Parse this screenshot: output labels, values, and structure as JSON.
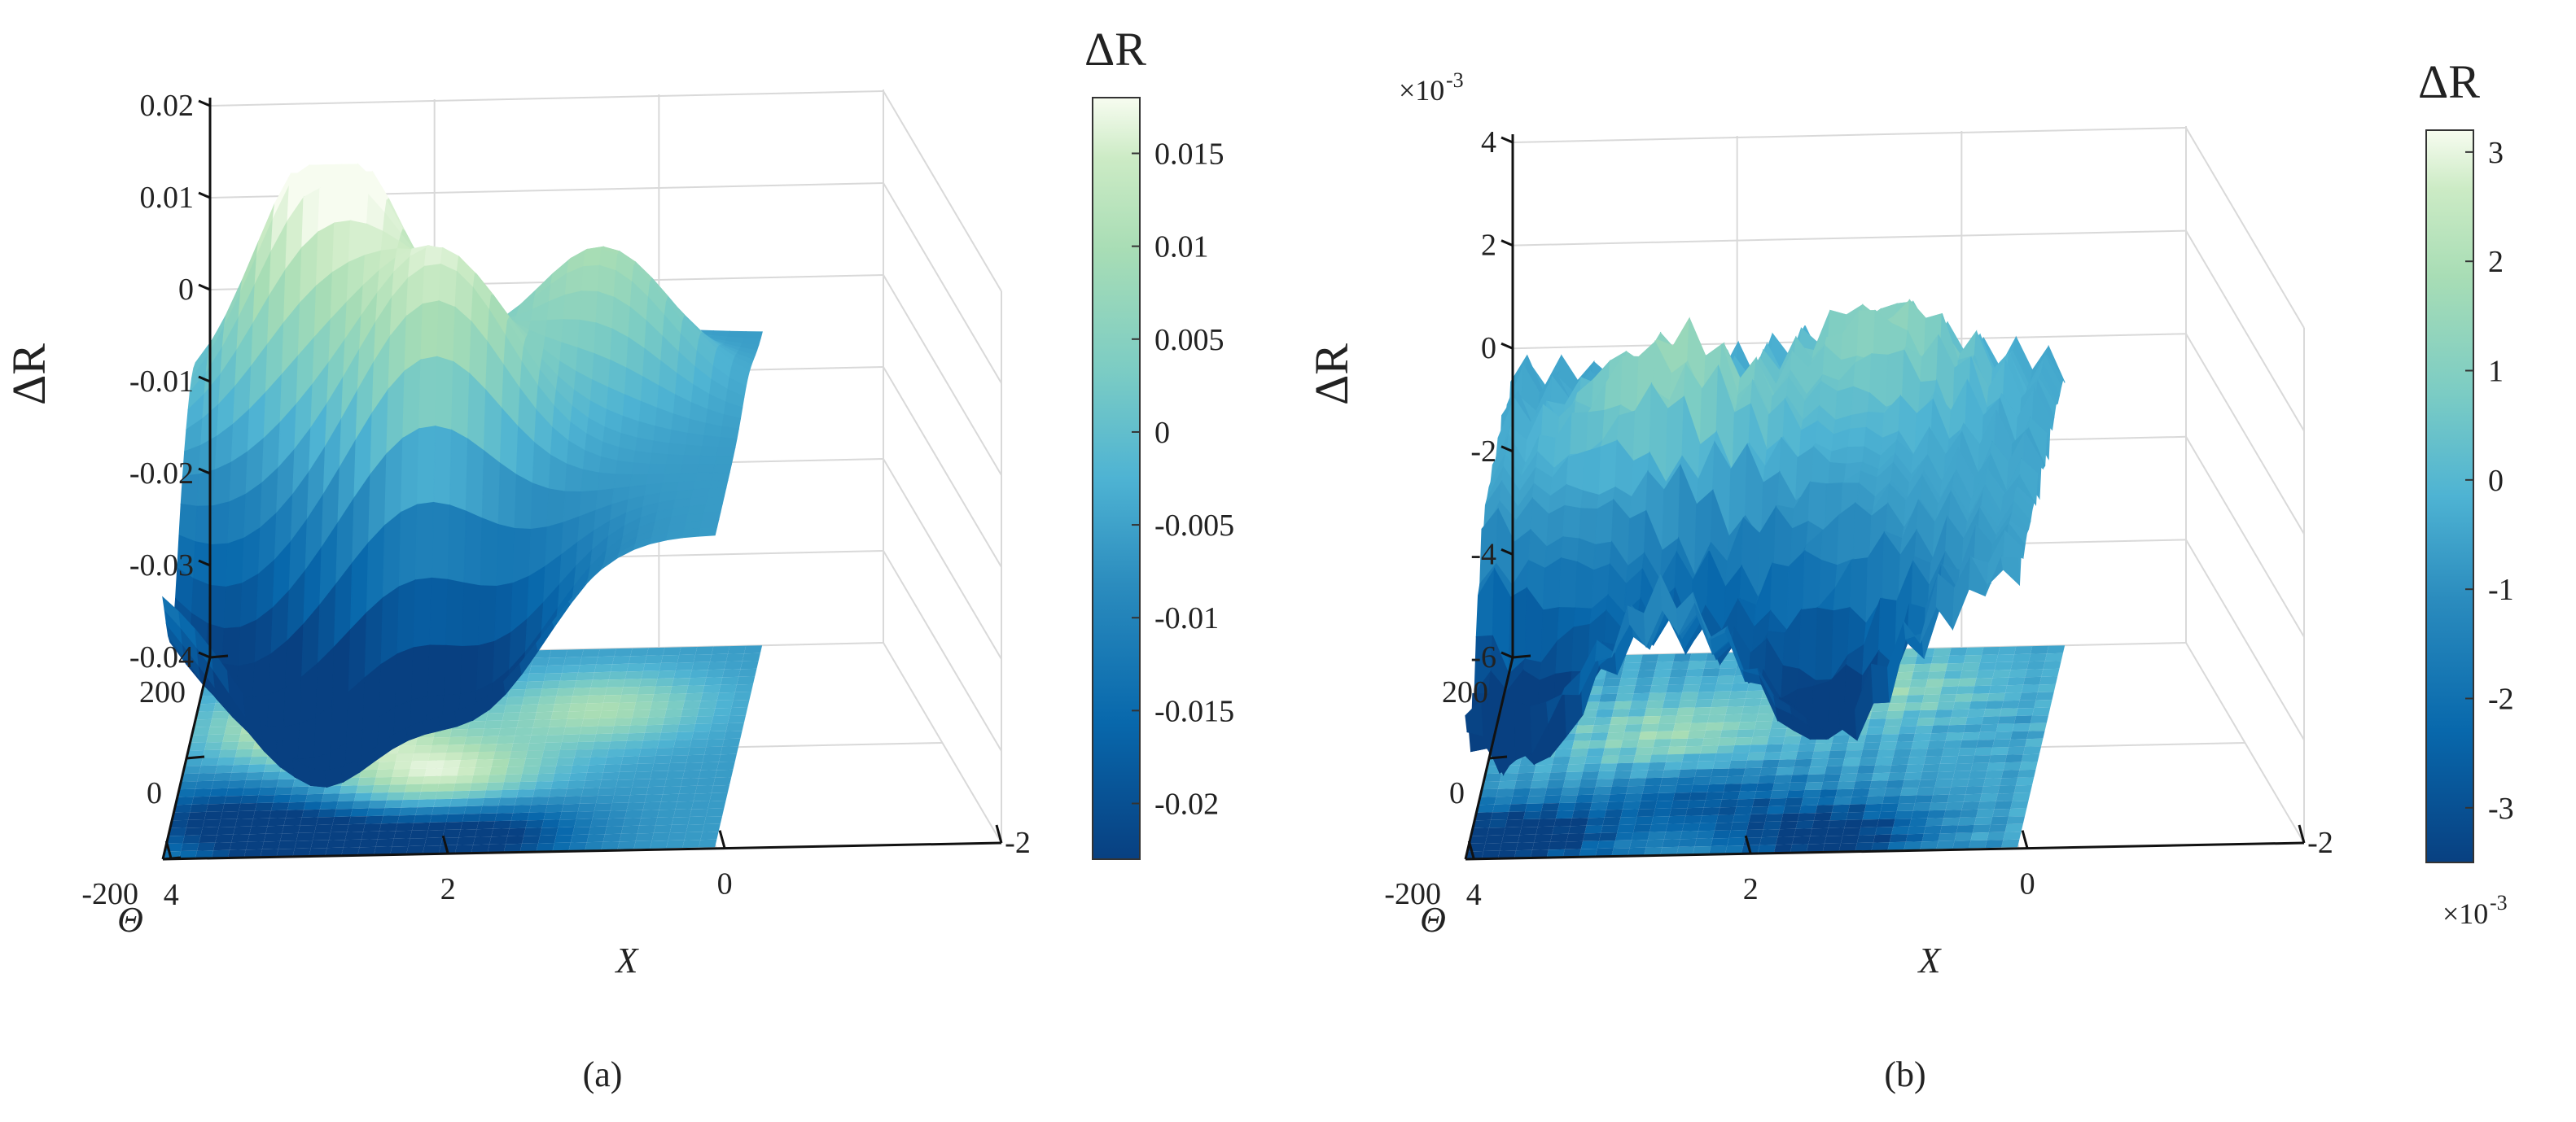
{
  "chart_data": [
    {
      "type": "surface3d",
      "panel_label": "(a)",
      "zlabel": "ΔR",
      "xlabel": "X",
      "ylabel": "Θ",
      "z_ticks": [
        "0.02",
        "0.01",
        "0",
        "-0.01",
        "-0.02",
        "-0.03",
        "-0.04"
      ],
      "x_ticks": [
        "4",
        "2",
        "0",
        "-2"
      ],
      "y_ticks": [
        "200",
        "0",
        "-200"
      ],
      "xlim": [
        -2,
        4
      ],
      "ylim": [
        -200,
        200
      ],
      "zlim": [
        -0.04,
        0.02
      ],
      "colorbar": {
        "title": "ΔR",
        "ticks": [
          "0.015",
          "0.01",
          "0.005",
          "0",
          "-0.005",
          "-0.01",
          "-0.015",
          "-0.02"
        ],
        "range": [
          -0.023,
          0.018
        ],
        "exponent_label": ""
      },
      "surface": {
        "base": -0.006,
        "amplitude": 0.013,
        "roughness": 0,
        "peaks": [
          {
            "x": 2.8,
            "y": 60,
            "z": 0.024
          },
          {
            "x": 1.7,
            "y": -40,
            "z": 0.016
          },
          {
            "x": 0.4,
            "y": 80,
            "z": 0.01
          },
          {
            "x": 2.6,
            "y": -180,
            "z": -0.03
          },
          {
            "x": 1.2,
            "y": -170,
            "z": -0.025
          },
          {
            "x": 3.6,
            "y": -120,
            "z": -0.022
          }
        ]
      }
    },
    {
      "type": "surface3d",
      "panel_label": "(b)",
      "zlabel": "ΔR",
      "xlabel": "X",
      "ylabel": "Θ",
      "z_exponent_label": "×10",
      "z_exponent_power": "-3",
      "z_ticks": [
        "4",
        "2",
        "0",
        "-2",
        "-4",
        "-6"
      ],
      "x_ticks": [
        "4",
        "2",
        "0",
        "-2"
      ],
      "y_ticks": [
        "200",
        "0"
      ],
      "y_extra_tick": "-200",
      "xlim": [
        -2,
        4
      ],
      "ylim": [
        -200,
        200
      ],
      "zlim": [
        -6,
        4
      ],
      "colorbar": {
        "title": "ΔR",
        "ticks": [
          "3",
          "2",
          "1",
          "0",
          "-1",
          "-2",
          "-3"
        ],
        "range": [
          -3.5,
          3.2
        ],
        "exponent_label": "×10",
        "exponent_power": "-3"
      },
      "surface": {
        "base": -0.5,
        "amplitude": 2.5,
        "roughness": 0.6,
        "peaks": [
          {
            "x": 2.4,
            "y": 40,
            "z": 1.5
          },
          {
            "x": 0.6,
            "y": 120,
            "z": 1.2
          },
          {
            "x": 3.6,
            "y": -160,
            "z": -4.5
          },
          {
            "x": 0.8,
            "y": -170,
            "z": -4.0
          },
          {
            "x": 2.0,
            "y": -90,
            "z": -2.5
          }
        ]
      }
    }
  ]
}
